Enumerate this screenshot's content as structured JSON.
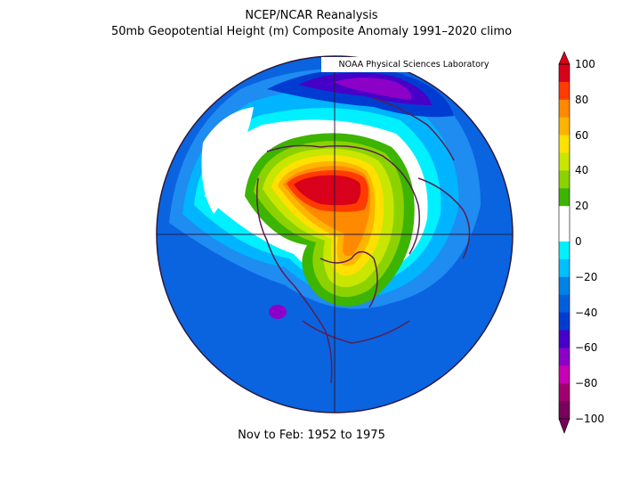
{
  "header": {
    "line1": "NCEP/NCAR Reanalysis",
    "line2": "50mb Geopotential Height (m) Composite Anomaly 1991–2020 climo"
  },
  "credit": "NOAA Physical Sciences Laboratory",
  "footer": "Nov to Feb: 1952 to 1975",
  "colorbar": {
    "labels": [
      "100",
      "80",
      "60",
      "40",
      "20",
      "0",
      "−20",
      "−40",
      "−60",
      "−80",
      "−100"
    ],
    "colors": [
      "#d8001a",
      "#ff3b00",
      "#ff8a00",
      "#ffb400",
      "#ffe000",
      "#c8e600",
      "#8cd200",
      "#3cb400",
      "#ffffff",
      "#ffffff",
      "#00f0ff",
      "#00bfff",
      "#0082e6",
      "#005fdc",
      "#003cd2",
      "#4600c8",
      "#8c00c8",
      "#c800b4",
      "#a0006e",
      "#78005a"
    ]
  },
  "map": {
    "projection": "north-polar-stereographic",
    "anomaly_regions": [
      {
        "name": "positive-core",
        "value": 100
      },
      {
        "name": "positive-lobe-greenland",
        "value": 70
      },
      {
        "name": "negative-north-pacific",
        "value": -60
      }
    ]
  }
}
